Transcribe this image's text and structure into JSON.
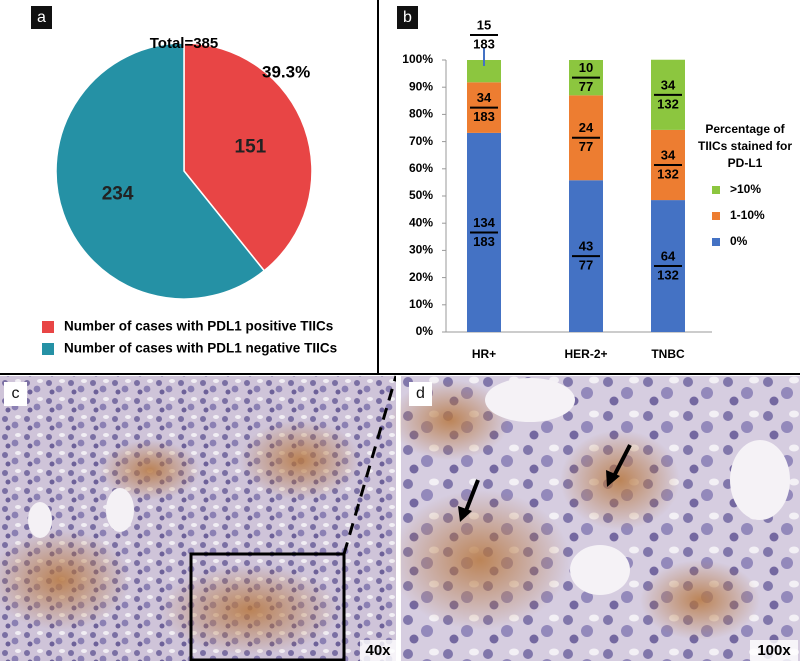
{
  "chart_data": [
    {
      "type": "pie",
      "panel_label": "a",
      "title": "Total=385",
      "annotation": "39.3%",
      "categories": [
        "Number of cases with PDL1 positive TIICs",
        "Number of cases with PDL1 negative TIICs"
      ],
      "values": [
        151,
        234
      ],
      "colors": [
        "#e84545",
        "#2591a5"
      ]
    },
    {
      "type": "stacked-bar",
      "panel_label": "b",
      "categories": [
        "HR+",
        "HER-2+",
        "TNBC"
      ],
      "ylim": [
        0,
        100
      ],
      "yticks": [
        {
          "value": 0,
          "label": "0%"
        },
        {
          "value": 10,
          "label": "10%"
        },
        {
          "value": 20,
          "label": "20%"
        },
        {
          "value": 30,
          "label": "30%"
        },
        {
          "value": 40,
          "label": "40%"
        },
        {
          "value": 50,
          "label": "50%"
        },
        {
          "value": 60,
          "label": "60%"
        },
        {
          "value": 70,
          "label": "70%"
        },
        {
          "value": 80,
          "label": "80%"
        },
        {
          "value": 90,
          "label": "90%"
        },
        {
          "value": 100,
          "label": "100%"
        }
      ],
      "legend_title": "Percentage of TIICs stained for PD-L1",
      "series": [
        {
          "name": "0%",
          "color": "#4472c4",
          "values": [
            73.2,
            55.8,
            48.5
          ],
          "value_labels": [
            [
              "134",
              "183"
            ],
            [
              "43",
              "77"
            ],
            [
              "64",
              "132"
            ]
          ]
        },
        {
          "name": "1-10%",
          "color": "#ed7d31",
          "values": [
            18.6,
            31.2,
            25.8
          ],
          "value_labels": [
            [
              "34",
              "183"
            ],
            [
              "24",
              "77"
            ],
            [
              "34",
              "132"
            ]
          ]
        },
        {
          "name": ">10%",
          "color": "#8cc63f",
          "values": [
            8.2,
            13.0,
            25.8
          ],
          "value_labels": [
            [
              "15",
              "183"
            ],
            [
              "10",
              "77"
            ],
            [
              "34",
              "132"
            ]
          ]
        }
      ]
    }
  ],
  "images": [
    {
      "panel_label": "c",
      "magnification": "40x"
    },
    {
      "panel_label": "d",
      "magnification": "100x"
    }
  ]
}
